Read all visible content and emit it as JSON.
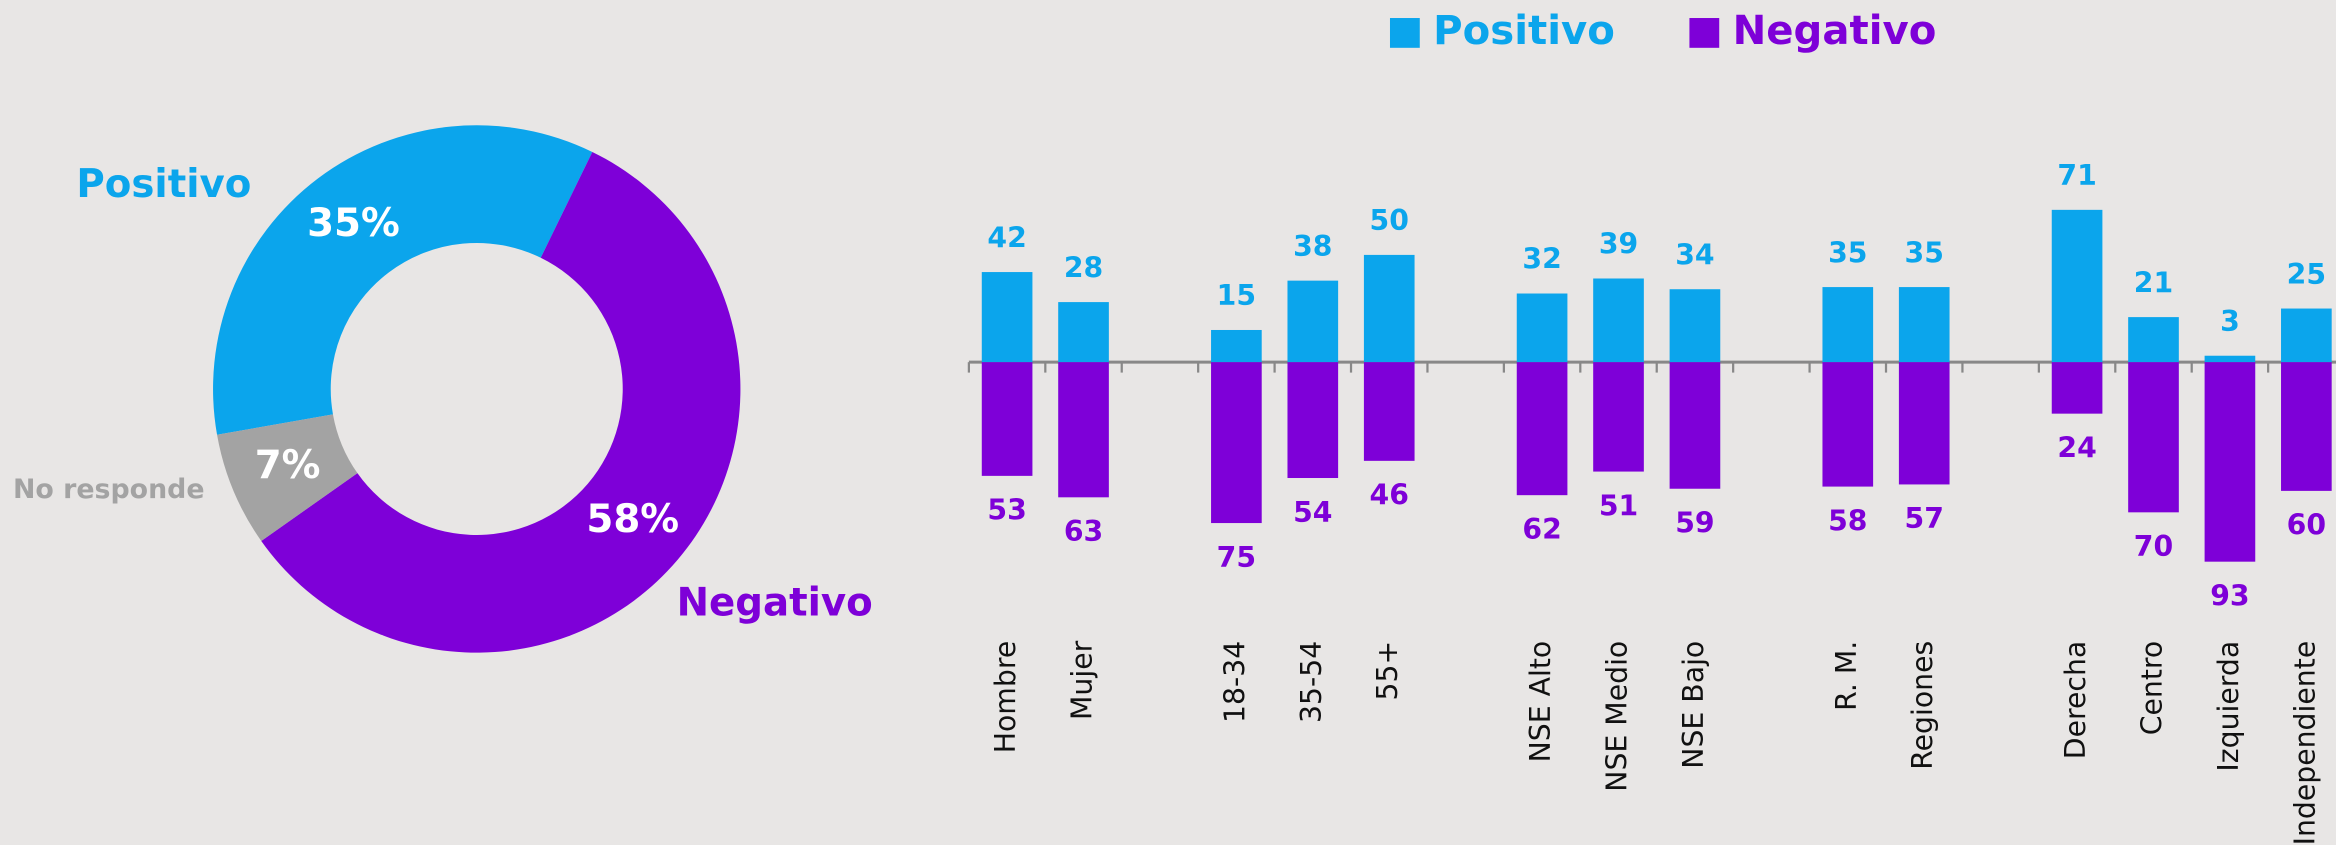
{
  "chart_data": [
    {
      "type": "pie",
      "categories": [
        "Positivo",
        "Negativo",
        "No responde"
      ],
      "values": [
        35,
        58,
        7
      ],
      "value_labels": [
        "35%",
        "58%",
        "7%"
      ],
      "colors": [
        "#0ba5ec",
        "#7e00d8",
        "#a3a3a3"
      ],
      "donut": true
    },
    {
      "type": "bar",
      "categories": [
        "Hombre",
        "Mujer",
        null,
        "18-34",
        "35-54",
        "55+",
        null,
        "NSE Alto",
        "NSE Medio",
        "NSE Bajo",
        null,
        "R. M.",
        "Regiones",
        null,
        "Derecha",
        "Centro",
        "Izquierda",
        "Independiente"
      ],
      "series": [
        {
          "name": "Positivo",
          "color": "#0ba5ec",
          "values": [
            42,
            28,
            null,
            15,
            38,
            50,
            null,
            32,
            39,
            34,
            null,
            35,
            35,
            null,
            71,
            21,
            3,
            25
          ]
        },
        {
          "name": "Negativo",
          "color": "#7e00d8",
          "values": [
            53,
            63,
            null,
            75,
            54,
            46,
            null,
            62,
            51,
            59,
            null,
            58,
            57,
            null,
            24,
            70,
            93,
            60
          ]
        }
      ],
      "legend": "top"
    }
  ]
}
